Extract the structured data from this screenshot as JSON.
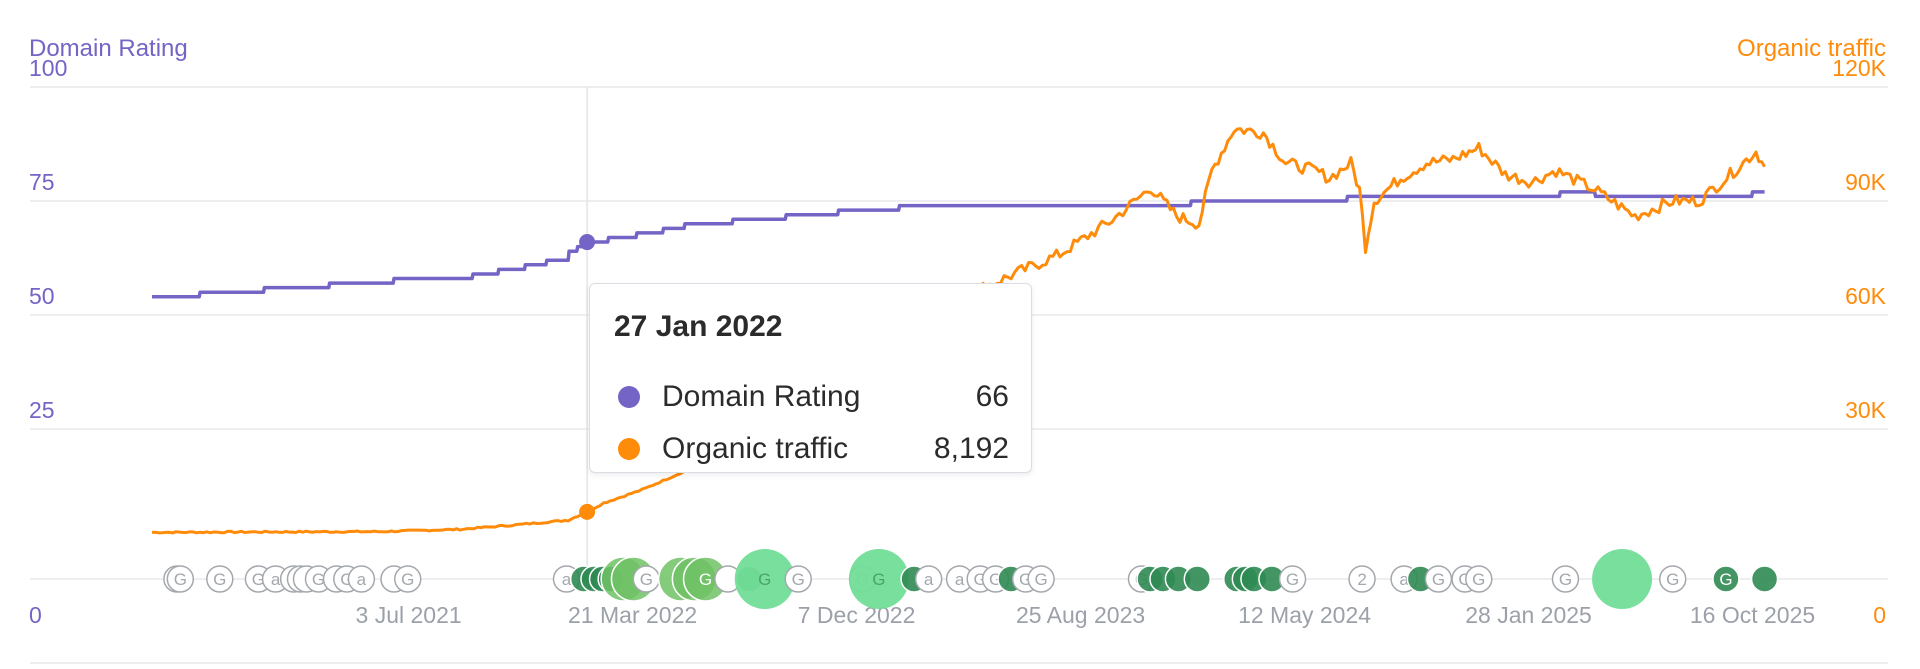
{
  "colors": {
    "domain_rating": "#7364c6",
    "organic_traffic": "#ff8b0a",
    "grid": "#e8e9ec",
    "x_tick": "#9ba0a9",
    "marker_gray": "#a4a8ad",
    "marker_dark_green": "#2f8a52",
    "marker_mid_green": "#6fc265",
    "marker_light_green": "#72dd97"
  },
  "chart_data": {
    "type": "line",
    "left_axis_label": "Domain Rating",
    "right_axis_label": "Organic traffic",
    "left_ticks": [
      "0",
      "25",
      "50",
      "75",
      "100"
    ],
    "right_ticks": [
      "0",
      "30K",
      "60K",
      "90K",
      "120K"
    ],
    "left_range": [
      0,
      100
    ],
    "right_range": [
      0,
      120000
    ],
    "x_range": [
      "2020-09-07",
      "2025-11-17"
    ],
    "x_ticks": [
      {
        "date": "2021-07-03",
        "label": "3 Jul 2021"
      },
      {
        "date": "2022-03-21",
        "label": "21 Mar 2022"
      },
      {
        "date": "2022-12-07",
        "label": "7 Dec 2022"
      },
      {
        "date": "2023-08-25",
        "label": "25 Aug 2023"
      },
      {
        "date": "2024-05-12",
        "label": "12 May 2024"
      },
      {
        "date": "2025-01-28",
        "label": "28 Jan 2025"
      },
      {
        "date": "2025-10-16",
        "label": "16 Oct 2025"
      }
    ],
    "grid": true,
    "series": [
      {
        "name": "Domain Rating",
        "axis": "left",
        "points": [
          [
            "2020-09-07",
            54
          ],
          [
            "2020-11-01",
            54
          ],
          [
            "2020-11-02",
            55
          ],
          [
            "2021-01-15",
            55
          ],
          [
            "2021-01-16",
            56
          ],
          [
            "2021-04-01",
            56
          ],
          [
            "2021-04-02",
            57
          ],
          [
            "2021-06-15",
            57
          ],
          [
            "2021-06-16",
            58
          ],
          [
            "2021-09-15",
            58
          ],
          [
            "2021-09-16",
            59
          ],
          [
            "2021-10-15",
            59
          ],
          [
            "2021-10-16",
            60
          ],
          [
            "2021-11-15",
            60
          ],
          [
            "2021-11-16",
            61
          ],
          [
            "2021-12-10",
            61
          ],
          [
            "2021-12-11",
            62
          ],
          [
            "2022-01-05",
            62
          ],
          [
            "2022-01-06",
            64
          ],
          [
            "2022-01-15",
            64
          ],
          [
            "2022-01-16",
            65
          ],
          [
            "2022-01-26",
            65
          ],
          [
            "2022-01-27",
            66
          ],
          [
            "2022-02-20",
            66
          ],
          [
            "2022-02-21",
            67
          ],
          [
            "2022-03-25",
            67
          ],
          [
            "2022-03-26",
            68
          ],
          [
            "2022-04-25",
            68
          ],
          [
            "2022-04-26",
            69
          ],
          [
            "2022-05-20",
            69
          ],
          [
            "2022-05-21",
            70
          ],
          [
            "2022-07-15",
            70
          ],
          [
            "2022-07-16",
            71
          ],
          [
            "2022-09-15",
            71
          ],
          [
            "2022-09-16",
            72
          ],
          [
            "2022-11-15",
            72
          ],
          [
            "2022-11-16",
            73
          ],
          [
            "2023-01-25",
            73
          ],
          [
            "2023-01-26",
            74
          ],
          [
            "2023-12-31",
            74
          ],
          [
            "2024-01-01",
            75
          ],
          [
            "2024-06-30",
            75
          ],
          [
            "2024-07-01",
            76
          ],
          [
            "2025-03-05",
            76
          ],
          [
            "2025-03-06",
            77
          ],
          [
            "2025-04-15",
            77
          ],
          [
            "2025-04-16",
            76
          ],
          [
            "2025-10-15",
            76
          ],
          [
            "2025-10-16",
            77
          ],
          [
            "2025-10-30",
            77
          ]
        ]
      },
      {
        "name": "Organic traffic",
        "axis": "right",
        "points": [
          [
            "2020-09-07",
            2800
          ],
          [
            "2021-01-01",
            2900
          ],
          [
            "2021-06-01",
            3000
          ],
          [
            "2021-09-01",
            3600
          ],
          [
            "2021-11-01",
            4700
          ],
          [
            "2022-01-05",
            6000
          ],
          [
            "2022-01-27",
            8192
          ],
          [
            "2022-02-15",
            10500
          ],
          [
            "2022-04-01",
            14000
          ],
          [
            "2022-06-01",
            20000
          ],
          [
            "2022-08-01",
            28000
          ],
          [
            "2022-10-01",
            36000
          ],
          [
            "2022-12-01",
            46000
          ],
          [
            "2023-02-01",
            56000
          ],
          [
            "2023-04-01",
            64000
          ],
          [
            "2023-06-01",
            70000
          ],
          [
            "2023-08-01",
            76000
          ],
          [
            "2023-10-01",
            85000
          ],
          [
            "2023-11-15",
            93500
          ],
          [
            "2023-12-15",
            86000
          ],
          [
            "2024-01-10",
            84000
          ],
          [
            "2024-01-25",
            98000
          ],
          [
            "2024-02-20",
            109000
          ],
          [
            "2024-03-25",
            108000
          ],
          [
            "2024-04-20",
            100000
          ],
          [
            "2024-05-25",
            98000
          ],
          [
            "2024-06-10",
            96000
          ],
          [
            "2024-07-05",
            100000
          ],
          [
            "2024-07-15",
            93000
          ],
          [
            "2024-07-22",
            78000
          ],
          [
            "2024-08-01",
            90000
          ],
          [
            "2024-09-01",
            96000
          ],
          [
            "2024-10-01",
            100000
          ],
          [
            "2024-11-01",
            101000
          ],
          [
            "2024-12-01",
            104000
          ],
          [
            "2025-01-01",
            97000
          ],
          [
            "2025-02-01",
            95000
          ],
          [
            "2025-03-01",
            98000
          ],
          [
            "2025-04-15",
            93000
          ],
          [
            "2025-06-01",
            86000
          ],
          [
            "2025-07-15",
            90000
          ],
          [
            "2025-08-15",
            90000
          ],
          [
            "2025-09-20",
            97000
          ],
          [
            "2025-10-20",
            103000
          ],
          [
            "2025-10-30",
            99000
          ]
        ]
      }
    ],
    "hover": {
      "date": "27 Jan 2022",
      "rows": [
        {
          "name": "Domain Rating",
          "value": "66"
        },
        {
          "name": "Organic traffic",
          "value": "8,192"
        }
      ]
    },
    "markers": [
      {
        "date": "2020-10-06",
        "symbol": "G",
        "style": "gray"
      },
      {
        "date": "2020-10-10",
        "symbol": "G",
        "style": "gray"
      },
      {
        "date": "2020-11-25",
        "symbol": "G",
        "style": "gray"
      },
      {
        "date": "2021-01-09",
        "symbol": "G",
        "style": "gray"
      },
      {
        "date": "2021-01-29",
        "symbol": "a",
        "style": "gray"
      },
      {
        "date": "2021-02-19",
        "symbol": "",
        "style": "gray"
      },
      {
        "date": "2021-02-27",
        "symbol": "",
        "style": "gray"
      },
      {
        "date": "2021-03-06",
        "symbol": "",
        "style": "gray"
      },
      {
        "date": "2021-03-20",
        "symbol": "G",
        "style": "gray"
      },
      {
        "date": "2021-04-10",
        "symbol": "",
        "style": "gray"
      },
      {
        "date": "2021-04-22",
        "symbol": "G",
        "style": "gray"
      },
      {
        "date": "2021-05-09",
        "symbol": "a",
        "style": "gray"
      },
      {
        "date": "2021-06-16",
        "symbol": "",
        "style": "gray"
      },
      {
        "date": "2021-07-02",
        "symbol": "G",
        "style": "gray"
      },
      {
        "date": "2022-01-03",
        "symbol": "a",
        "style": "gray"
      },
      {
        "date": "2022-01-23",
        "symbol": "",
        "style": "dark"
      },
      {
        "date": "2022-02-04",
        "symbol": "",
        "style": "dark"
      },
      {
        "date": "2022-02-14",
        "symbol": "",
        "style": "dark"
      },
      {
        "date": "2022-02-24",
        "symbol": "",
        "style": "dark"
      },
      {
        "date": "2022-03-10",
        "symbol": "",
        "style": "mid",
        "size": "large"
      },
      {
        "date": "2022-03-22",
        "symbol": "",
        "style": "mid",
        "size": "large"
      },
      {
        "date": "2022-04-06",
        "symbol": "G",
        "style": "gray"
      },
      {
        "date": "2022-05-16",
        "symbol": "",
        "style": "mid",
        "size": "large"
      },
      {
        "date": "2022-06-01",
        "symbol": "",
        "style": "mid",
        "size": "large"
      },
      {
        "date": "2022-06-14",
        "symbol": "G",
        "style": "mid",
        "size": "large"
      },
      {
        "date": "2022-07-10",
        "symbol": "",
        "style": "gray"
      },
      {
        "date": "2022-08-04",
        "symbol": "",
        "style": "dark"
      },
      {
        "date": "2022-08-22",
        "symbol": "G",
        "style": "light",
        "size": "xl"
      },
      {
        "date": "2022-09-30",
        "symbol": "G",
        "style": "gray"
      },
      {
        "date": "2022-12-14",
        "symbol": "G",
        "style": "gray"
      },
      {
        "date": "2023-01-02",
        "symbol": "G",
        "style": "light",
        "size": "xl"
      },
      {
        "date": "2023-02-12",
        "symbol": "",
        "style": "dark"
      },
      {
        "date": "2023-03-01",
        "symbol": "a",
        "style": "gray"
      },
      {
        "date": "2023-04-06",
        "symbol": "a",
        "style": "gray"
      },
      {
        "date": "2023-04-30",
        "symbol": "G",
        "style": "gray"
      },
      {
        "date": "2023-05-18",
        "symbol": "G",
        "style": "gray"
      },
      {
        "date": "2023-06-05",
        "symbol": "",
        "style": "dark"
      },
      {
        "date": "2023-06-22",
        "symbol": "G",
        "style": "gray"
      },
      {
        "date": "2023-07-10",
        "symbol": "G",
        "style": "gray"
      },
      {
        "date": "2023-11-04",
        "symbol": "G",
        "style": "gray"
      },
      {
        "date": "2023-11-14",
        "symbol": "",
        "style": "dark"
      },
      {
        "date": "2023-11-29",
        "symbol": "",
        "style": "dark"
      },
      {
        "date": "2023-12-17",
        "symbol": "",
        "style": "dark"
      },
      {
        "date": "2024-01-08",
        "symbol": "",
        "style": "dark"
      },
      {
        "date": "2024-02-23",
        "symbol": "",
        "style": "dark"
      },
      {
        "date": "2024-03-04",
        "symbol": "",
        "style": "dark"
      },
      {
        "date": "2024-03-14",
        "symbol": "",
        "style": "dark"
      },
      {
        "date": "2024-04-04",
        "symbol": "",
        "style": "dark"
      },
      {
        "date": "2024-04-28",
        "symbol": "G",
        "style": "gray"
      },
      {
        "date": "2024-07-18",
        "symbol": "2",
        "style": "gray"
      },
      {
        "date": "2024-09-05",
        "symbol": "a",
        "style": "gray"
      },
      {
        "date": "2024-09-24",
        "symbol": "",
        "style": "dark"
      },
      {
        "date": "2024-10-15",
        "symbol": "G",
        "style": "gray"
      },
      {
        "date": "2024-11-15",
        "symbol": "G",
        "style": "gray"
      },
      {
        "date": "2024-12-01",
        "symbol": "G",
        "style": "gray"
      },
      {
        "date": "2025-03-12",
        "symbol": "G",
        "style": "gray"
      },
      {
        "date": "2025-05-17",
        "symbol": "",
        "style": "light",
        "size": "xl"
      },
      {
        "date": "2025-07-15",
        "symbol": "G",
        "style": "gray"
      },
      {
        "date": "2025-09-15",
        "symbol": "G",
        "style": "dark"
      },
      {
        "date": "2025-10-30",
        "symbol": "",
        "style": "dark"
      }
    ]
  }
}
